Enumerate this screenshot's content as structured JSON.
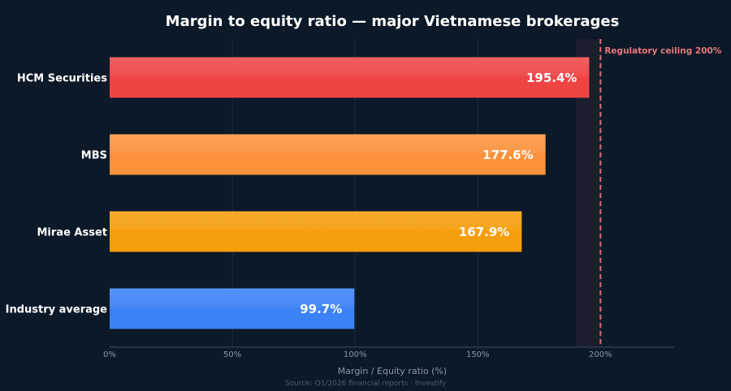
{
  "chart_data": {
    "type": "bar",
    "orientation": "horizontal",
    "title": "Margin to equity ratio — major Vietnamese brokerages",
    "xlabel": "Margin / Equity ratio (%)",
    "ylabel": "",
    "xlim": [
      0,
      230
    ],
    "x_ticks": [
      0,
      50,
      100,
      150,
      200
    ],
    "x_tick_labels": [
      "0%",
      "50%",
      "100%",
      "150%",
      "200%"
    ],
    "categories": [
      "HCM Securities",
      "MBS",
      "Mirae Asset",
      "Industry average"
    ],
    "values": [
      195.4,
      177.6,
      167.9,
      99.7
    ],
    "value_labels": [
      "195.4%",
      "177.6%",
      "167.9%",
      "99.7%"
    ],
    "bar_colors": [
      "#ef4444",
      "#fb923c",
      "#f59e0b",
      "#3b82f6"
    ],
    "reference_line": {
      "value": 200,
      "label": "Regulatory ceiling 200%",
      "color": "#e06a6a",
      "style": "dashed"
    },
    "shaded_band": [
      190,
      200
    ],
    "grid": true,
    "source": "Source: Q1/2026 financial reports · Investify"
  },
  "colors": {
    "background": "#0c1929",
    "grid": "#1c2b3d",
    "text": "#ffffff",
    "muted": "#8b98a9"
  }
}
